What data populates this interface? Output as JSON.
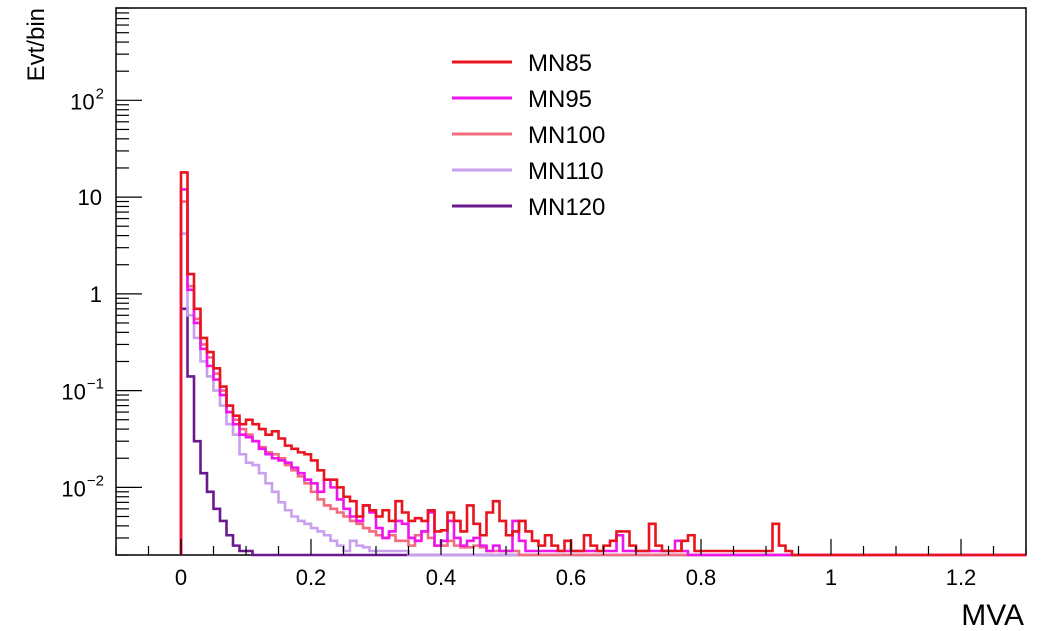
{
  "chart_data": {
    "type": "line",
    "style": "step-histogram",
    "xlabel": "MVA",
    "ylabel": "Evt/bin",
    "xlim": [
      -0.1,
      1.3
    ],
    "ylim": [
      0.002,
      900
    ],
    "yscale": "log",
    "grid": false,
    "legend_position": "top-center",
    "bin_width": 0.01,
    "x_ticks": [
      {
        "value": 0,
        "label": "0"
      },
      {
        "value": 0.2,
        "label": "0.2"
      },
      {
        "value": 0.4,
        "label": "0.4"
      },
      {
        "value": 0.6,
        "label": "0.6"
      },
      {
        "value": 0.8,
        "label": "0.8"
      },
      {
        "value": 1,
        "label": "1"
      },
      {
        "value": 1.2,
        "label": "1.2"
      }
    ],
    "y_ticks": [
      {
        "value": 0.01,
        "base": "10",
        "exp": "−2"
      },
      {
        "value": 0.1,
        "base": "10",
        "exp": "−1"
      },
      {
        "value": 1,
        "base": "1",
        "exp": ""
      },
      {
        "value": 10,
        "base": "10",
        "exp": ""
      },
      {
        "value": 100,
        "base": "10",
        "exp": "2"
      }
    ],
    "series": [
      {
        "name": "MN85",
        "color": "#e8141e",
        "x": [
          0.0,
          0.01,
          0.02,
          0.03,
          0.04,
          0.05,
          0.06,
          0.07,
          0.08,
          0.09,
          0.1,
          0.11,
          0.12,
          0.13,
          0.14,
          0.15,
          0.16,
          0.17,
          0.18,
          0.19,
          0.2,
          0.21,
          0.22,
          0.23,
          0.24,
          0.25,
          0.26,
          0.27,
          0.28,
          0.29,
          0.3,
          0.31,
          0.32,
          0.33,
          0.34,
          0.35,
          0.36,
          0.37,
          0.38,
          0.39,
          0.4,
          0.41,
          0.42,
          0.43,
          0.44,
          0.45,
          0.46,
          0.47,
          0.48,
          0.49,
          0.5,
          0.51,
          0.52,
          0.53,
          0.54,
          0.55,
          0.56,
          0.57,
          0.58,
          0.59,
          0.6,
          0.61,
          0.62,
          0.63,
          0.64,
          0.65,
          0.66,
          0.67,
          0.68,
          0.69,
          0.7,
          0.71,
          0.72,
          0.73,
          0.74,
          0.75,
          0.76,
          0.77,
          0.78,
          0.79,
          0.8,
          0.81,
          0.82,
          0.83,
          0.84,
          0.85,
          0.86,
          0.87,
          0.88,
          0.89,
          0.9,
          0.91,
          0.92,
          0.93
        ],
        "values": [
          18,
          1.6,
          0.7,
          0.35,
          0.25,
          0.17,
          0.11,
          0.07,
          0.055,
          0.045,
          0.05,
          0.045,
          0.04,
          0.035,
          0.038,
          0.032,
          0.027,
          0.025,
          0.023,
          0.022,
          0.019,
          0.015,
          0.012,
          0.012,
          0.01,
          0.008,
          0.0072,
          0.005,
          0.0065,
          0.0058,
          0.005,
          0.0058,
          0.0045,
          0.0072,
          0.0055,
          0.0045,
          0.0048,
          0.0045,
          0.0058,
          0.0035,
          0.0036,
          0.0055,
          0.0045,
          0.0035,
          0.0065,
          0.0042,
          0.0032,
          0.0055,
          0.0072,
          0.0045,
          0.0032,
          0.0035,
          0.0045,
          0.0035,
          0.0028,
          0.0025,
          0.0032,
          0.0025,
          0.0022,
          0.0028,
          0.0022,
          0.0022,
          0.0032,
          0.0025,
          0.0022,
          0.0025,
          0.0028,
          0.0035,
          0.0035,
          0.0025,
          0.0022,
          0.0022,
          0.0042,
          0.0025,
          0.0022,
          0.0022,
          0.0022,
          0.0028,
          0.0032,
          0.0022,
          0.0022,
          0.0022,
          0.0022,
          0.0022,
          0.0022,
          0.0022,
          0.0022,
          0.0022,
          0.0022,
          0.0022,
          0.0022,
          0.0042,
          0.0025,
          0.0022
        ]
      },
      {
        "name": "MN95",
        "color": "#ee16ec",
        "x": [
          0.0,
          0.01,
          0.02,
          0.03,
          0.04,
          0.05,
          0.06,
          0.07,
          0.08,
          0.09,
          0.1,
          0.11,
          0.12,
          0.13,
          0.14,
          0.15,
          0.16,
          0.17,
          0.18,
          0.19,
          0.2,
          0.21,
          0.22,
          0.23,
          0.24,
          0.25,
          0.26,
          0.27,
          0.28,
          0.29,
          0.3,
          0.31,
          0.32,
          0.33,
          0.34,
          0.35,
          0.36,
          0.37,
          0.38,
          0.39,
          0.4,
          0.41,
          0.42,
          0.43,
          0.44,
          0.45,
          0.46,
          0.47,
          0.48,
          0.49,
          0.5,
          0.51,
          0.52,
          0.53,
          0.54,
          0.55,
          0.56,
          0.57,
          0.58,
          0.59,
          0.6,
          0.61,
          0.62,
          0.63,
          0.64,
          0.65,
          0.66,
          0.67,
          0.68,
          0.69,
          0.7,
          0.71,
          0.72,
          0.73,
          0.74,
          0.75,
          0.76,
          0.77
        ],
        "values": [
          12,
          1.1,
          0.5,
          0.27,
          0.18,
          0.13,
          0.09,
          0.06,
          0.045,
          0.035,
          0.033,
          0.03,
          0.025,
          0.022,
          0.02,
          0.019,
          0.018,
          0.016,
          0.014,
          0.012,
          0.011,
          0.009,
          0.012,
          0.01,
          0.0075,
          0.006,
          0.005,
          0.0045,
          0.0065,
          0.0055,
          0.0038,
          0.003,
          0.0035,
          0.0045,
          0.0042,
          0.003,
          0.0028,
          0.0035,
          0.0055,
          0.0025,
          0.0028,
          0.0045,
          0.003,
          0.0025,
          0.0028,
          0.003,
          0.0025,
          0.0022,
          0.0025,
          0.0022,
          0.0022,
          0.0045,
          0.0028,
          0.0022,
          0.0022,
          0.0022,
          0.0022,
          0.0022,
          0.0022,
          0.0022,
          0.0022,
          0.0022,
          0.0022,
          0.0022,
          0.0022,
          0.0022,
          0.0022,
          0.0032,
          0.0022,
          0.0022,
          0.0022,
          0.0022,
          0.0022,
          0.0022,
          0.0022,
          0.0022,
          0.0028,
          0.0022
        ]
      },
      {
        "name": "MN100",
        "color": "#f36b7e",
        "x": [
          0.0,
          0.01,
          0.02,
          0.03,
          0.04,
          0.05,
          0.06,
          0.07,
          0.08,
          0.09,
          0.1,
          0.11,
          0.12,
          0.13,
          0.14,
          0.15,
          0.16,
          0.17,
          0.18,
          0.19,
          0.2,
          0.21,
          0.22,
          0.23,
          0.24,
          0.25,
          0.26,
          0.27,
          0.28,
          0.29,
          0.3,
          0.31,
          0.32,
          0.33,
          0.34,
          0.35,
          0.36,
          0.37,
          0.38,
          0.39,
          0.4,
          0.41,
          0.42,
          0.43,
          0.44,
          0.45,
          0.46,
          0.47,
          0.48,
          0.49,
          0.5,
          0.51
        ],
        "values": [
          9,
          1.2,
          0.55,
          0.3,
          0.22,
          0.15,
          0.1,
          0.06,
          0.05,
          0.04,
          0.035,
          0.03,
          0.026,
          0.023,
          0.022,
          0.02,
          0.017,
          0.015,
          0.013,
          0.011,
          0.009,
          0.0075,
          0.0065,
          0.006,
          0.0055,
          0.005,
          0.0045,
          0.0042,
          0.0038,
          0.0035,
          0.0032,
          0.003,
          0.0032,
          0.0028,
          0.0028,
          0.0025,
          0.0032,
          0.0035,
          0.003,
          0.0025,
          0.0025,
          0.0028,
          0.0025,
          0.0024,
          0.0024,
          0.0025,
          0.0024,
          0.0022,
          0.0022,
          0.0022,
          0.0022,
          0.0022
        ]
      },
      {
        "name": "MN110",
        "color": "#c8a0ee",
        "x": [
          0.0,
          0.01,
          0.02,
          0.03,
          0.04,
          0.05,
          0.06,
          0.07,
          0.08,
          0.09,
          0.1,
          0.11,
          0.12,
          0.13,
          0.14,
          0.15,
          0.16,
          0.17,
          0.18,
          0.19,
          0.2,
          0.21,
          0.22,
          0.23,
          0.24,
          0.25,
          0.26,
          0.27,
          0.28,
          0.29,
          0.3,
          0.31,
          0.32,
          0.33,
          0.34
        ],
        "values": [
          4.2,
          0.6,
          0.35,
          0.2,
          0.14,
          0.1,
          0.07,
          0.045,
          0.035,
          0.022,
          0.018,
          0.017,
          0.014,
          0.011,
          0.009,
          0.007,
          0.0058,
          0.005,
          0.0045,
          0.0042,
          0.0038,
          0.0035,
          0.0032,
          0.0028,
          0.0025,
          0.0022,
          0.0028,
          0.0025,
          0.0024,
          0.0022,
          0.0022,
          0.0022,
          0.0022,
          0.0022,
          0.0022
        ]
      },
      {
        "name": "MN120",
        "color": "#6a1a8e",
        "x": [
          0.0,
          0.01,
          0.02,
          0.03,
          0.04,
          0.05,
          0.06,
          0.07,
          0.08,
          0.09,
          0.1
        ],
        "values": [
          0.7,
          0.14,
          0.03,
          0.014,
          0.009,
          0.006,
          0.0045,
          0.0032,
          0.0025,
          0.0022,
          0.0022
        ]
      }
    ]
  }
}
